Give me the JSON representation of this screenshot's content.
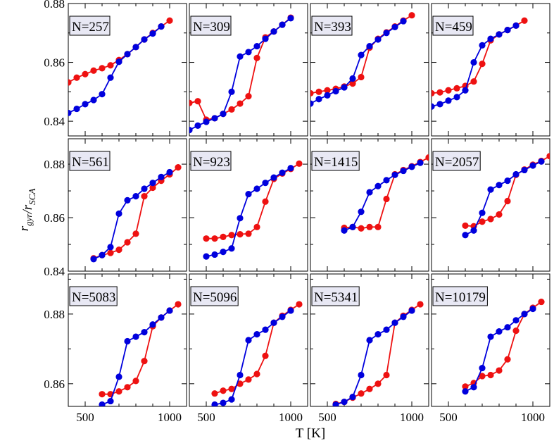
{
  "chart_data": {
    "type": "line",
    "layout": "3x4 grid of small multiples",
    "xlabel": "T [K]",
    "ylabel": "r_gyr/r_SCA",
    "xlim": [
      400,
      1100
    ],
    "xticks": [
      500,
      1000
    ],
    "xtick_labels": [
      "500",
      "1000"
    ],
    "rows": [
      {
        "ylim": [
          0.835,
          0.88
        ],
        "yticks": [
          0.84,
          0.86,
          0.88
        ],
        "ytick_labels": [
          "0.84",
          "0.86",
          "0.88"
        ]
      },
      {
        "ylim": [
          0.84,
          0.8895
        ],
        "yticks": [
          0.84,
          0.86,
          0.88
        ],
        "ytick_labels": [
          "0.84",
          "0.86",
          "0.88"
        ]
      },
      {
        "ylim": [
          0.8535,
          0.8915
        ],
        "yticks": [
          0.86,
          0.88
        ],
        "ytick_labels": [
          "0.86",
          "0.88"
        ]
      }
    ],
    "series_colors": {
      "blue": "#0000dd",
      "red": "#ee1111"
    },
    "panels": [
      {
        "label": "N=257",
        "row": 0,
        "col": 0,
        "blue": {
          "x": [
            400,
            450,
            500,
            550,
            600,
            650,
            700,
            750,
            800,
            850,
            900,
            950
          ],
          "y": [
            0.8428,
            0.8442,
            0.8458,
            0.8472,
            0.8492,
            0.8548,
            0.8602,
            0.8628,
            0.8652,
            0.8678,
            0.8698,
            0.8722
          ]
        },
        "red": {
          "x": [
            400,
            450,
            500,
            550,
            600,
            650,
            700,
            750,
            800,
            850,
            900,
            950,
            1000
          ],
          "y": [
            0.8532,
            0.8548,
            0.856,
            0.8572,
            0.858,
            0.859,
            0.8608,
            0.8628,
            0.8652,
            0.8678,
            0.87,
            0.8722,
            0.8742
          ]
        }
      },
      {
        "label": "N=309",
        "row": 0,
        "col": 1,
        "blue": {
          "x": [
            400,
            450,
            500,
            550,
            600,
            650,
            700,
            750,
            800,
            850,
            900,
            950,
            1000
          ],
          "y": [
            0.837,
            0.8385,
            0.8398,
            0.841,
            0.8425,
            0.85,
            0.862,
            0.8635,
            0.8655,
            0.868,
            0.8705,
            0.8728,
            0.875
          ]
        },
        "red": {
          "x": [
            400,
            450,
            500,
            550,
            600,
            650,
            700,
            750,
            800,
            850,
            900,
            950,
            1000
          ],
          "y": [
            0.8462,
            0.8468,
            0.8405,
            0.841,
            0.8425,
            0.844,
            0.846,
            0.8485,
            0.8615,
            0.8685,
            0.8705,
            0.8728,
            0.8752
          ]
        }
      },
      {
        "label": "N=393",
        "row": 0,
        "col": 2,
        "blue": {
          "x": [
            400,
            450,
            500,
            550,
            600,
            650,
            700,
            750,
            800,
            850,
            900,
            950
          ],
          "y": [
            0.846,
            0.8475,
            0.8488,
            0.8502,
            0.8515,
            0.8545,
            0.8625,
            0.8655,
            0.8678,
            0.87,
            0.872,
            0.874
          ]
        },
        "red": {
          "x": [
            400,
            450,
            500,
            550,
            600,
            650,
            700,
            750,
            800,
            850,
            900,
            950,
            1000
          ],
          "y": [
            0.8495,
            0.85,
            0.8505,
            0.851,
            0.8518,
            0.8528,
            0.855,
            0.865,
            0.868,
            0.8702,
            0.8722,
            0.8742,
            0.876
          ]
        }
      },
      {
        "label": "N=459",
        "row": 0,
        "col": 3,
        "blue": {
          "x": [
            400,
            450,
            500,
            550,
            600,
            650,
            700,
            750,
            800,
            850,
            900
          ],
          "y": [
            0.845,
            0.8458,
            0.847,
            0.8482,
            0.8505,
            0.86,
            0.8658,
            0.868,
            0.8695,
            0.871,
            0.8725
          ]
        },
        "red": {
          "x": [
            400,
            450,
            500,
            550,
            600,
            650,
            700,
            750,
            800,
            850,
            900,
            950
          ],
          "y": [
            0.8495,
            0.8498,
            0.8505,
            0.8512,
            0.852,
            0.8535,
            0.8595,
            0.8675,
            0.8695,
            0.871,
            0.8725,
            0.8742
          ]
        }
      },
      {
        "label": "N=561",
        "row": 1,
        "col": 0,
        "blue": {
          "x": [
            550,
            600,
            650,
            700,
            750,
            800,
            850,
            900,
            950,
            1000
          ],
          "y": [
            0.8445,
            0.846,
            0.849,
            0.8615,
            0.8665,
            0.868,
            0.8708,
            0.873,
            0.8752,
            0.877
          ]
        },
        "red": {
          "x": [
            550,
            600,
            650,
            700,
            750,
            800,
            850,
            900,
            950,
            1000,
            1050
          ],
          "y": [
            0.8448,
            0.846,
            0.8468,
            0.848,
            0.8508,
            0.854,
            0.868,
            0.8712,
            0.8738,
            0.8762,
            0.8788
          ]
        }
      },
      {
        "label": "N=923",
        "row": 1,
        "col": 1,
        "blue": {
          "x": [
            500,
            550,
            600,
            650,
            700,
            750,
            800,
            850,
            900,
            950,
            1000
          ],
          "y": [
            0.8455,
            0.8462,
            0.8472,
            0.8485,
            0.8598,
            0.8688,
            0.8708,
            0.873,
            0.875,
            0.8768,
            0.8785
          ]
        },
        "red": {
          "x": [
            500,
            550,
            600,
            650,
            700,
            750,
            800,
            850,
            900,
            950,
            1000,
            1050
          ],
          "y": [
            0.8522,
            0.8522,
            0.8528,
            0.8535,
            0.8538,
            0.854,
            0.8565,
            0.866,
            0.8745,
            0.8765,
            0.8782,
            0.8802
          ]
        }
      },
      {
        "label": "N=1415",
        "row": 1,
        "col": 2,
        "blue": {
          "x": [
            600,
            650,
            700,
            750,
            800,
            850,
            900,
            950,
            1000,
            1050
          ],
          "y": [
            0.8552,
            0.8565,
            0.8622,
            0.8695,
            0.8718,
            0.874,
            0.876,
            0.8775,
            0.879,
            0.8805
          ]
        },
        "red": {
          "x": [
            600,
            650,
            700,
            750,
            800,
            850,
            900,
            950,
            1000,
            1050,
            1100
          ],
          "y": [
            0.8562,
            0.8565,
            0.856,
            0.8565,
            0.8565,
            0.867,
            0.8762,
            0.8778,
            0.8792,
            0.8808,
            0.8825
          ]
        }
      },
      {
        "label": "N=2057",
        "row": 1,
        "col": 3,
        "blue": {
          "x": [
            600,
            650,
            700,
            750,
            800,
            850,
            900,
            950,
            1000,
            1050
          ],
          "y": [
            0.8535,
            0.8552,
            0.8618,
            0.8705,
            0.8722,
            0.8738,
            0.8762,
            0.8778,
            0.8795,
            0.881
          ]
        },
        "red": {
          "x": [
            600,
            650,
            700,
            750,
            800,
            850,
            900,
            950,
            1000,
            1050,
            1100
          ],
          "y": [
            0.857,
            0.8568,
            0.8585,
            0.8595,
            0.8612,
            0.8662,
            0.876,
            0.878,
            0.8798,
            0.8812,
            0.883
          ]
        }
      },
      {
        "label": "N=5083",
        "row": 2,
        "col": 0,
        "blue": {
          "x": [
            600,
            650,
            700,
            750,
            800,
            850,
            900,
            950,
            1000
          ],
          "y": [
            0.854,
            0.855,
            0.862,
            0.8722,
            0.8735,
            0.8748,
            0.877,
            0.879,
            0.881
          ]
        },
        "red": {
          "x": [
            600,
            650,
            700,
            750,
            800,
            850,
            900,
            950,
            1000,
            1050
          ],
          "y": [
            0.857,
            0.857,
            0.8578,
            0.859,
            0.8608,
            0.8665,
            0.8765,
            0.879,
            0.881,
            0.8828
          ]
        }
      },
      {
        "label": "N=5096",
        "row": 2,
        "col": 1,
        "blue": {
          "x": [
            550,
            600,
            650,
            700,
            750,
            800,
            850,
            900,
            950,
            1000
          ],
          "y": [
            0.854,
            0.8545,
            0.8555,
            0.8625,
            0.8725,
            0.8742,
            0.8755,
            0.8775,
            0.8792,
            0.881
          ]
        },
        "red": {
          "x": [
            550,
            600,
            650,
            700,
            750,
            800,
            850,
            900,
            950,
            1000,
            1050
          ],
          "y": [
            0.8572,
            0.858,
            0.8585,
            0.86,
            0.8612,
            0.8628,
            0.868,
            0.8775,
            0.8795,
            0.8812,
            0.8828
          ]
        }
      },
      {
        "label": "N=5341",
        "row": 2,
        "col": 2,
        "blue": {
          "x": [
            550,
            600,
            650,
            700,
            750,
            800,
            850,
            900,
            950,
            1000
          ],
          "y": [
            0.854,
            0.8548,
            0.8562,
            0.8625,
            0.8725,
            0.8742,
            0.8755,
            0.8775,
            0.8792,
            0.881
          ]
        },
        "red": {
          "x": [
            550,
            600,
            650,
            700,
            750,
            800,
            850,
            900,
            950,
            1000,
            1050
          ],
          "y": [
            0.8542,
            0.8548,
            0.856,
            0.8572,
            0.8585,
            0.86,
            0.8625,
            0.8775,
            0.8795,
            0.8812,
            0.8828
          ]
        }
      },
      {
        "label": "N=10179",
        "row": 2,
        "col": 3,
        "blue": {
          "x": [
            600,
            650,
            700,
            750,
            800,
            850,
            900,
            950,
            1000
          ],
          "y": [
            0.8578,
            0.859,
            0.8645,
            0.8735,
            0.875,
            0.8762,
            0.8782,
            0.88,
            0.8815
          ]
        },
        "red": {
          "x": [
            600,
            650,
            700,
            750,
            800,
            850,
            900,
            950,
            1000,
            1050
          ],
          "y": [
            0.8592,
            0.8602,
            0.8622,
            0.8625,
            0.8638,
            0.867,
            0.8752,
            0.88,
            0.8818,
            0.8835
          ]
        }
      }
    ]
  }
}
